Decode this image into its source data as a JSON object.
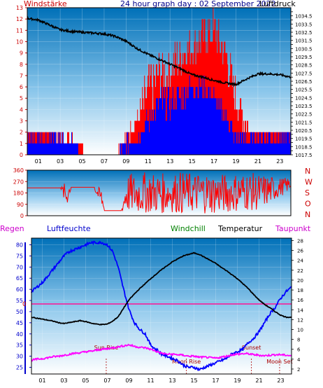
{
  "header": {
    "left_label": "Windstärke",
    "title": "24 hour graph day : 02 September 2022",
    "right_label": "Luftdruck"
  },
  "colors": {
    "wind": "#ff0000",
    "gust": "#0000ff",
    "pressure": "#000000",
    "humidity": "#0000ff",
    "temperature": "#000000",
    "dewpoint": "#ff00ff",
    "windchill": "#008000",
    "rain_line": "#ff0000",
    "plot_top": "#0070b8",
    "plot_bottom": "#ffffff"
  },
  "chart_data": [
    {
      "type": "line",
      "title": "24 hour graph day : 02 September 2022",
      "ylabel_left": "Windstärke",
      "ylabel_right": "Luftdruck",
      "x_ticks": [
        "01",
        "03",
        "05",
        "07",
        "09",
        "11",
        "13",
        "15",
        "17",
        "19",
        "21",
        "23"
      ],
      "x_range_hours": [
        0,
        24
      ],
      "wind_ylim": [
        0,
        13
      ],
      "wind_ticks": [
        0,
        1,
        2,
        3,
        4,
        5,
        6,
        7,
        8,
        9,
        10,
        11,
        12,
        13
      ],
      "pressure_ylim": [
        1017.5,
        1035.5
      ],
      "pressure_ticks": [
        "1017.5",
        "1018",
        "1018.5",
        "1019",
        "1019.5",
        "1020",
        "1020.5",
        "1021",
        "1021.5",
        "1022",
        "1022.5",
        "1023",
        "1023.5",
        "1024",
        "1024.5",
        "1025",
        "1025.5",
        "1026",
        "1026.5",
        "1027",
        "1027.5",
        "1028",
        "1028.5",
        "1029",
        "1029.5",
        "1030",
        "1030.5",
        "1031",
        "1031.5",
        "1032",
        "1032.5",
        "1033",
        "1033.5",
        "1034",
        "1034.5",
        "1035"
      ],
      "series": [
        {
          "kind": "pressure",
          "x": [
            0,
            1,
            2,
            3,
            4,
            5,
            6,
            7,
            8,
            9,
            10,
            11,
            12,
            13,
            14,
            15,
            16,
            17,
            18,
            19,
            20,
            21,
            22,
            23,
            24
          ],
          "values": [
            1034.2,
            1034.0,
            1033.4,
            1032.8,
            1032.6,
            1032.5,
            1032.4,
            1032.3,
            1032.0,
            1031.4,
            1030.5,
            1029.8,
            1029.2,
            1028.6,
            1028.0,
            1027.3,
            1027.0,
            1026.6,
            1026.3,
            1026.1,
            1026.8,
            1027.4,
            1027.4,
            1027.3,
            1027.0
          ]
        },
        {
          "kind": "wind",
          "x": [
            0,
            1,
            2,
            3,
            4,
            5,
            6,
            7,
            8,
            9,
            10,
            11,
            12,
            13,
            14,
            15,
            16,
            17,
            18,
            19,
            20,
            21,
            22,
            23,
            24
          ],
          "values": [
            2,
            2,
            2,
            1,
            1,
            0,
            0,
            0,
            0,
            1,
            2,
            3,
            5,
            6,
            7,
            8,
            9,
            9,
            7,
            3,
            2,
            2,
            2,
            2,
            2
          ],
          "max": [
            2,
            2,
            2,
            2,
            2,
            1,
            0,
            0,
            0,
            2,
            4,
            8,
            9,
            9,
            11,
            11,
            12,
            13,
            11,
            7,
            3,
            2,
            2,
            2,
            2
          ]
        },
        {
          "kind": "gust",
          "x": [
            0,
            1,
            2,
            3,
            4,
            5,
            6,
            7,
            8,
            9,
            10,
            11,
            12,
            13,
            14,
            15,
            16,
            17,
            18,
            19,
            20,
            21,
            22,
            23,
            24
          ],
          "values": [
            1,
            1,
            1,
            0,
            1,
            0,
            0,
            0,
            0,
            0,
            1,
            2,
            3,
            3,
            4,
            5,
            5,
            4,
            3,
            1,
            1,
            1,
            1,
            1,
            1
          ],
          "max": [
            2,
            2,
            2,
            2,
            2,
            0,
            0,
            0,
            0,
            2,
            2,
            4,
            6,
            6,
            6,
            7,
            7,
            6,
            4,
            2,
            2,
            2,
            2,
            2,
            2
          ]
        }
      ]
    },
    {
      "type": "line",
      "ylabel_right": [
        "N",
        "W",
        "S",
        "O",
        "N"
      ],
      "ylim": [
        0,
        360
      ],
      "y_ticks": [
        0,
        90,
        180,
        270,
        360
      ],
      "x_range_hours": [
        0,
        24
      ],
      "series": [
        {
          "kind": "winddir",
          "x": [
            0,
            1,
            2,
            3,
            3.5,
            3.6,
            4,
            5,
            6,
            6.8,
            7,
            8,
            8.6,
            9,
            10,
            11,
            12,
            13,
            14,
            15,
            16,
            17,
            18,
            19,
            20,
            21,
            22,
            23,
            24
          ],
          "values": [
            220,
            220,
            220,
            220,
            250,
            60,
            225,
            225,
            225,
            225,
            40,
            40,
            40,
            240,
            200,
            230,
            180,
            220,
            160,
            210,
            240,
            190,
            170,
            230,
            200,
            190,
            210,
            250,
            260
          ],
          "min": [
            220,
            220,
            220,
            220,
            60,
            60,
            225,
            225,
            225,
            40,
            40,
            40,
            40,
            20,
            10,
            20,
            10,
            30,
            10,
            20,
            20,
            10,
            20,
            30,
            40,
            40,
            80,
            150,
            200
          ],
          "max": [
            220,
            220,
            220,
            220,
            270,
            270,
            225,
            225,
            225,
            225,
            40,
            40,
            40,
            330,
            340,
            350,
            340,
            330,
            350,
            340,
            350,
            340,
            330,
            340,
            350,
            330,
            320,
            300,
            300
          ]
        }
      ]
    },
    {
      "type": "line",
      "labels": {
        "rain": "Regen",
        "humidity": "Luftfeuchte",
        "windchill": "Windchill",
        "temperature": "Temperatur",
        "dewpoint": "Taupunkt"
      },
      "rain_value_label": "0",
      "humidity_ylim": [
        22,
        83
      ],
      "humidity_ticks": [
        25,
        30,
        35,
        40,
        45,
        50,
        55,
        60,
        65,
        70,
        75,
        80
      ],
      "temperature_ylim": [
        1,
        28.5
      ],
      "temperature_ticks": [
        2,
        4,
        6,
        8,
        10,
        12,
        14,
        16,
        18,
        20,
        22,
        24,
        26,
        28
      ],
      "x_ticks": [
        "01",
        "03",
        "05",
        "07",
        "09",
        "11",
        "13",
        "15",
        "17",
        "19",
        "21",
        "23"
      ],
      "x_range_hours": [
        0,
        24
      ],
      "markers": [
        {
          "label": "Sun Rise",
          "hour": 6.9
        },
        {
          "label": "Moon Rise",
          "hour": 14.3
        },
        {
          "label": "Sunset",
          "hour": 20.3
        },
        {
          "label": "Moon Set",
          "hour": 22.9
        }
      ],
      "series": [
        {
          "kind": "humidity",
          "x": [
            0,
            0.5,
            1,
            1.5,
            2,
            2.5,
            3,
            3.5,
            4,
            4.5,
            5,
            5.5,
            6,
            6.5,
            7,
            7.5,
            8,
            8.5,
            9,
            9.5,
            10,
            10.5,
            11,
            11.5,
            12,
            12.5,
            13,
            13.5,
            14,
            14.5,
            15,
            15.5,
            16,
            16.5,
            17,
            17.5,
            18,
            18.5,
            19,
            19.5,
            20,
            20.5,
            21,
            21.5,
            22,
            22.5,
            23,
            23.5,
            24
          ],
          "values": [
            59,
            61,
            63,
            66,
            69,
            72,
            75,
            77,
            78,
            79,
            80,
            81,
            81,
            81,
            80,
            77,
            70,
            60,
            51,
            45,
            42,
            40,
            35,
            33,
            31,
            30,
            29,
            28,
            26,
            25,
            25,
            24,
            25,
            26,
            27,
            28,
            29,
            31,
            32,
            33,
            36,
            38,
            41,
            45,
            49,
            52,
            56,
            59,
            61
          ]
        },
        {
          "kind": "temperature",
          "x": [
            0,
            0.5,
            1,
            1.5,
            2,
            2.5,
            3,
            3.5,
            4,
            4.5,
            5,
            5.5,
            6,
            6.5,
            7,
            7.5,
            8,
            8.5,
            9,
            9.5,
            10,
            10.5,
            11,
            11.5,
            12,
            12.5,
            13,
            13.5,
            14,
            14.5,
            15,
            15.5,
            16,
            16.5,
            17,
            17.5,
            18,
            18.5,
            19,
            19.5,
            20,
            20.5,
            21,
            21.5,
            22,
            22.5,
            23,
            23.5,
            24
          ],
          "values": [
            12.5,
            12.3,
            12.1,
            11.9,
            11.7,
            11.4,
            11.2,
            11.4,
            11.6,
            11.8,
            11.6,
            11.3,
            11.1,
            11.0,
            11.1,
            11.7,
            12.6,
            14.3,
            16.0,
            17.2,
            18.3,
            19.3,
            20.3,
            21.2,
            22.1,
            22.9,
            23.7,
            24.3,
            24.9,
            25.2,
            25.5,
            25.2,
            24.6,
            24.0,
            23.4,
            22.6,
            21.9,
            21.1,
            20.3,
            19.3,
            18.3,
            17.1,
            16.0,
            15.1,
            14.4,
            13.6,
            12.9,
            12.5,
            12.5
          ]
        },
        {
          "kind": "dewpoint",
          "x": [
            0,
            0.5,
            1,
            1.5,
            2,
            2.5,
            3,
            3.5,
            4,
            4.5,
            5,
            5.5,
            6,
            6.5,
            7,
            7.5,
            8,
            8.5,
            9,
            9.5,
            10,
            10.5,
            11,
            11.5,
            12,
            12.5,
            13,
            13.5,
            14,
            14.5,
            15,
            15.5,
            16,
            16.5,
            17,
            17.5,
            18,
            18.5,
            19,
            19.5,
            20,
            20.5,
            21,
            21.5,
            22,
            22.5,
            23,
            23.5,
            24
          ],
          "values": [
            3.8,
            4.0,
            4.1,
            4.3,
            4.5,
            4.6,
            4.8,
            5.0,
            5.2,
            5.3,
            5.5,
            5.6,
            5.8,
            6.0,
            6.1,
            6.3,
            6.5,
            6.7,
            6.9,
            6.6,
            6.4,
            6.3,
            6.0,
            5.6,
            5.2,
            5.0,
            5.0,
            4.9,
            4.8,
            4.6,
            4.6,
            4.4,
            4.4,
            4.3,
            4.2,
            4.4,
            4.6,
            4.9,
            5.0,
            5.1,
            5.1,
            4.9,
            4.8,
            4.7,
            4.8,
            4.9,
            4.9,
            4.8,
            4.7
          ]
        }
      ]
    }
  ]
}
